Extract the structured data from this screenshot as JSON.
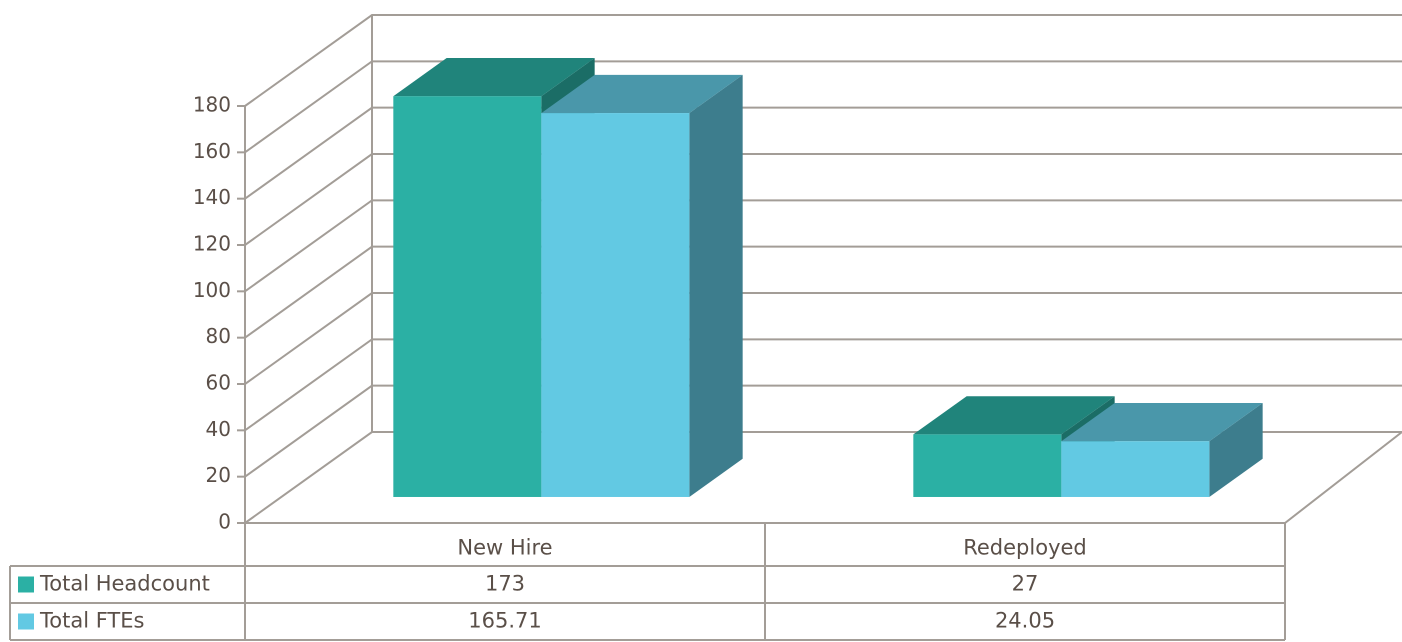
{
  "chart_data": {
    "type": "bar3d",
    "categories": [
      "New Hire",
      "Redeployed"
    ],
    "series": [
      {
        "name": "Total Headcount",
        "color": "#2bb0a4",
        "values": [
          173,
          27
        ]
      },
      {
        "name": "Total FTEs",
        "color": "#62c9e3",
        "values": [
          165.71,
          24.05
        ]
      }
    ],
    "ylim": [
      0,
      180
    ],
    "yticks": [
      0,
      20,
      40,
      60,
      80,
      100,
      120,
      140,
      160,
      180
    ],
    "grid": true,
    "data_table": true
  }
}
